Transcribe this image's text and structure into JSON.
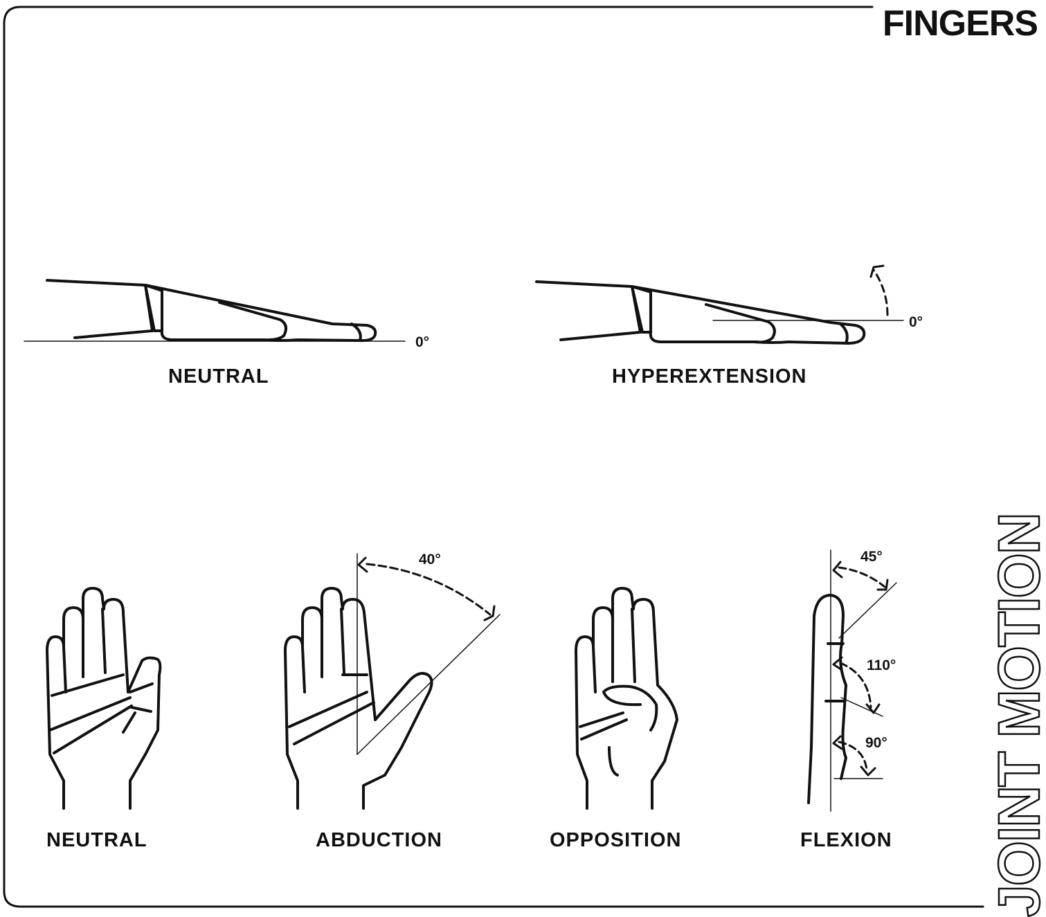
{
  "header": {
    "title": "FINGERS"
  },
  "side_title": "JOINT MOTION",
  "top_row": [
    {
      "label": "NEUTRAL",
      "angle": "0°"
    },
    {
      "label": "HYPEREXTENSION",
      "angle": "0°"
    }
  ],
  "bottom_row": [
    {
      "label": "NEUTRAL"
    },
    {
      "label": "ABDUCTION",
      "angle": "40°"
    },
    {
      "label": "OPPOSITION"
    },
    {
      "label": "FLEXION",
      "angles": [
        "45°",
        "110°",
        "90°"
      ]
    }
  ],
  "colors": {
    "ink": "#111111",
    "background": "#ffffff"
  }
}
